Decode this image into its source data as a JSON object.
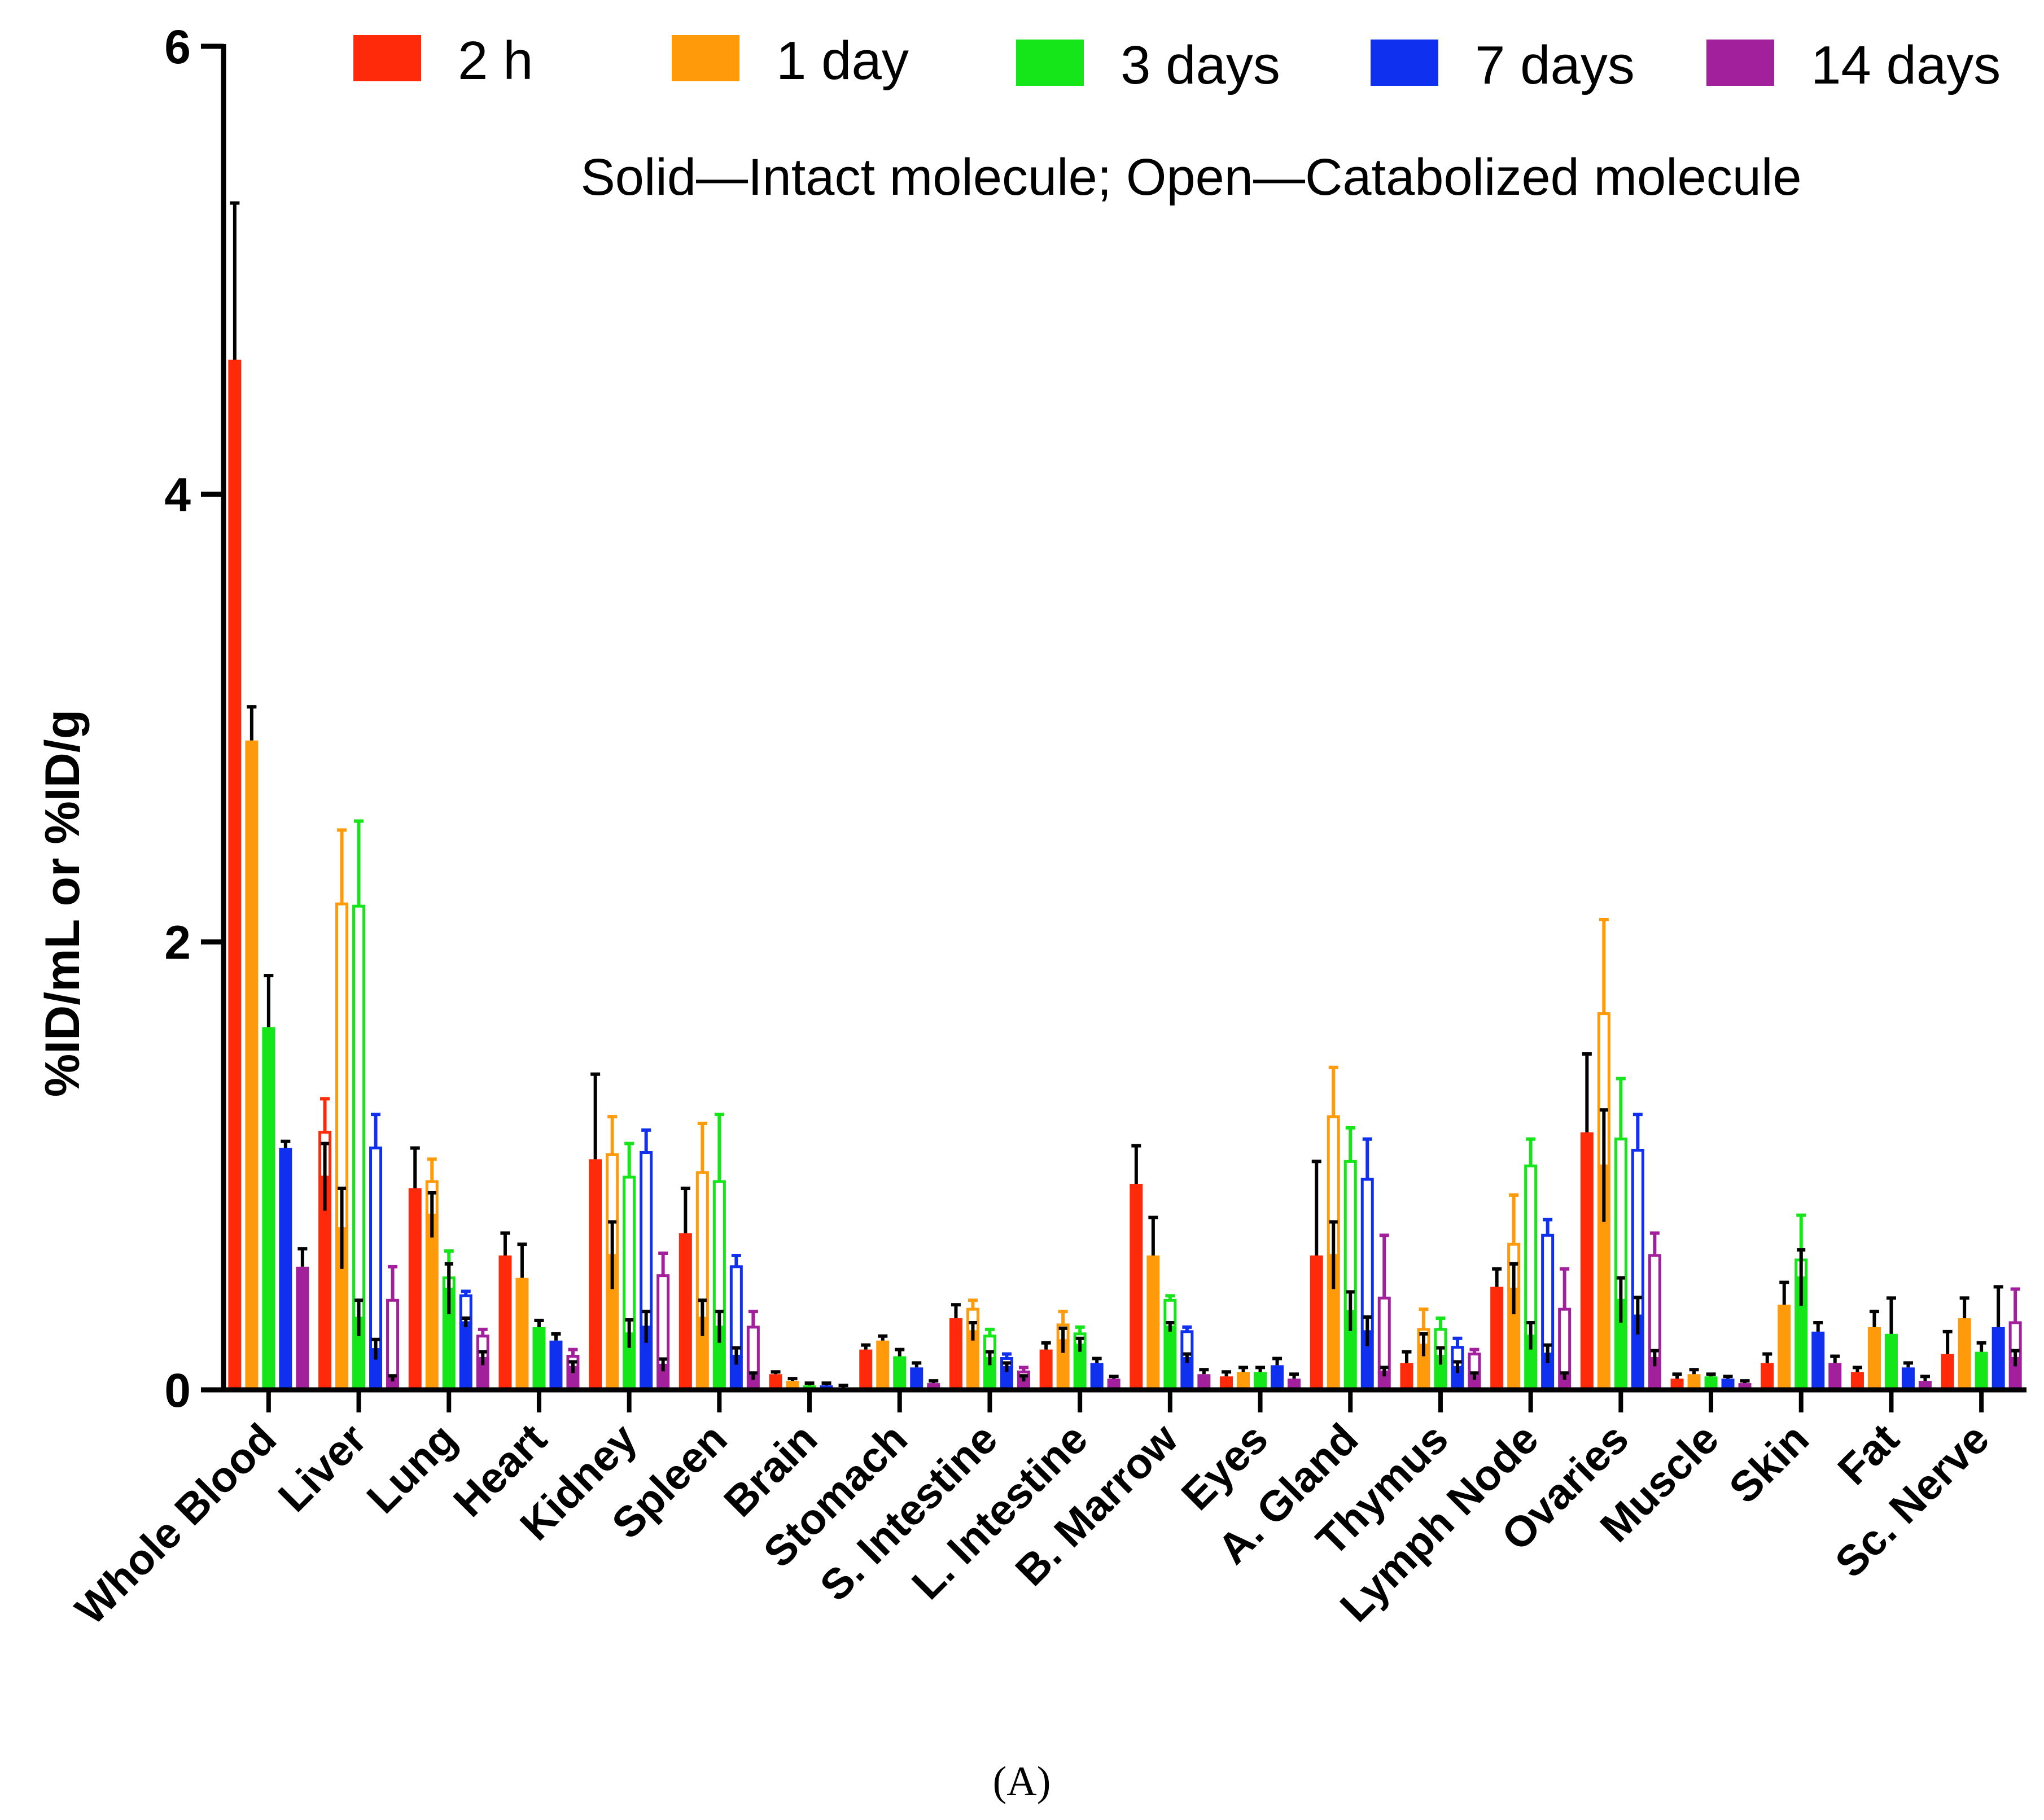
{
  "chart_data": {
    "type": "bar",
    "subtype": "grouped-stacked-with-error-bars",
    "title": "",
    "annotation": "Solid—Intact molecule; Open—Catabolized molecule",
    "caption": "(A)",
    "xlabel": "",
    "ylabel": "%ID/mL or %ID/g",
    "ylim": [
      0,
      6
    ],
    "yticks": [
      "0",
      "2",
      "4",
      "6"
    ],
    "grid": false,
    "legend_position": "top",
    "categories": [
      "Whole Blood",
      "Liver",
      "Lung",
      "Heart",
      "Kidney",
      "Spleen",
      "Brain",
      "Stomach",
      "S. Intestine",
      "L. Intestine",
      "B. Marrow",
      "Eyes",
      "A. Gland",
      "Thymus",
      "Lymph Node",
      "Ovaries",
      "Muscle",
      "Skin",
      "Fat",
      "Sc. Nerve"
    ],
    "series": [
      {
        "name": "2 h",
        "color": "#ff2a0a",
        "intact": [
          4.6,
          0.95,
          0.9,
          0.6,
          1.03,
          0.7,
          0.07,
          0.18,
          0.32,
          0.18,
          0.92,
          0.06,
          0.6,
          0.12,
          0.46,
          1.15,
          0.05,
          0.12,
          0.08,
          0.16
        ],
        "catabolized": [
          0,
          0.2,
          0,
          0,
          0,
          0,
          0,
          0,
          0,
          0,
          0,
          0,
          0,
          0,
          0,
          0,
          0,
          0,
          0,
          0
        ],
        "error": [
          0.7,
          0.15,
          0.18,
          0.1,
          0.38,
          0.2,
          0.01,
          0.02,
          0.06,
          0.03,
          0.17,
          0.02,
          0.42,
          0.05,
          0.08,
          0.35,
          0.02,
          0.04,
          0.02,
          0.1
        ]
      },
      {
        "name": "1 day",
        "color": "#ff9a0a",
        "intact": [
          2.9,
          0.72,
          0.78,
          0.5,
          0.6,
          0.32,
          0.04,
          0.22,
          0.26,
          0.22,
          0.6,
          0.08,
          0.6,
          0.2,
          0.45,
          1.0,
          0.07,
          0.38,
          0.28,
          0.32
        ],
        "catabolized": [
          0,
          1.45,
          0.15,
          0,
          0.45,
          0.65,
          0,
          0,
          0.1,
          0.07,
          0,
          0,
          0.62,
          0.07,
          0.2,
          0.68,
          0,
          0,
          0,
          0
        ],
        "error": [
          0.15,
          0.33,
          0.1,
          0.15,
          0.17,
          0.22,
          0.01,
          0.02,
          0.04,
          0.06,
          0.17,
          0.02,
          0.22,
          0.09,
          0.22,
          0.42,
          0.02,
          0.1,
          0.07,
          0.09
        ]
      },
      {
        "name": "3 days",
        "color": "#15e61a",
        "intact": [
          1.62,
          0.32,
          0.45,
          0.28,
          0.25,
          0.28,
          0.02,
          0.15,
          0.14,
          0.2,
          0.28,
          0.08,
          0.35,
          0.15,
          0.24,
          0.4,
          0.06,
          0.5,
          0.25,
          0.17
        ],
        "catabolized": [
          0,
          1.84,
          0.05,
          0,
          0.7,
          0.65,
          0,
          0,
          0.1,
          0.05,
          0.12,
          0,
          0.67,
          0.12,
          0.76,
          0.72,
          0,
          0.08,
          0,
          0
        ],
        "error": [
          0.23,
          0.38,
          0.12,
          0.03,
          0.15,
          0.3,
          0.01,
          0.03,
          0.03,
          0.03,
          0.02,
          0.02,
          0.15,
          0.05,
          0.12,
          0.27,
          0.01,
          0.2,
          0.16,
          0.04
        ]
      },
      {
        "name": "7 days",
        "color": "#1030f0",
        "intact": [
          1.08,
          0.18,
          0.3,
          0.22,
          0.28,
          0.15,
          0.02,
          0.1,
          0.1,
          0.12,
          0.14,
          0.11,
          0.26,
          0.1,
          0.16,
          0.33,
          0.05,
          0.26,
          0.1,
          0.28
        ],
        "catabolized": [
          0,
          0.9,
          0.12,
          0,
          0.78,
          0.4,
          0,
          0,
          0.04,
          0,
          0.12,
          0,
          0.68,
          0.09,
          0.53,
          0.74,
          0,
          0,
          0,
          0
        ],
        "error": [
          0.03,
          0.15,
          0.02,
          0.03,
          0.1,
          0.05,
          0.01,
          0.02,
          0.02,
          0.02,
          0.02,
          0.03,
          0.18,
          0.04,
          0.07,
          0.16,
          0.01,
          0.04,
          0.02,
          0.18
        ]
      },
      {
        "name": "14 days",
        "color": "#a3209c",
        "intact": [
          0.55,
          0.05,
          0.14,
          0.1,
          0.11,
          0.06,
          0.01,
          0.03,
          0.05,
          0.05,
          0.07,
          0.05,
          0.08,
          0.06,
          0.06,
          0.14,
          0.03,
          0.12,
          0.04,
          0.14
        ],
        "catabolized": [
          0,
          0.35,
          0.1,
          0.05,
          0.4,
          0.22,
          0,
          0,
          0.03,
          0,
          0,
          0,
          0.33,
          0.1,
          0.3,
          0.46,
          0,
          0,
          0,
          0.16
        ],
        "error": [
          0.08,
          0.15,
          0.03,
          0.03,
          0.1,
          0.07,
          0.01,
          0.01,
          0.02,
          0.01,
          0.02,
          0.02,
          0.28,
          0.02,
          0.18,
          0.1,
          0.01,
          0.03,
          0.02,
          0.15
        ]
      }
    ]
  }
}
